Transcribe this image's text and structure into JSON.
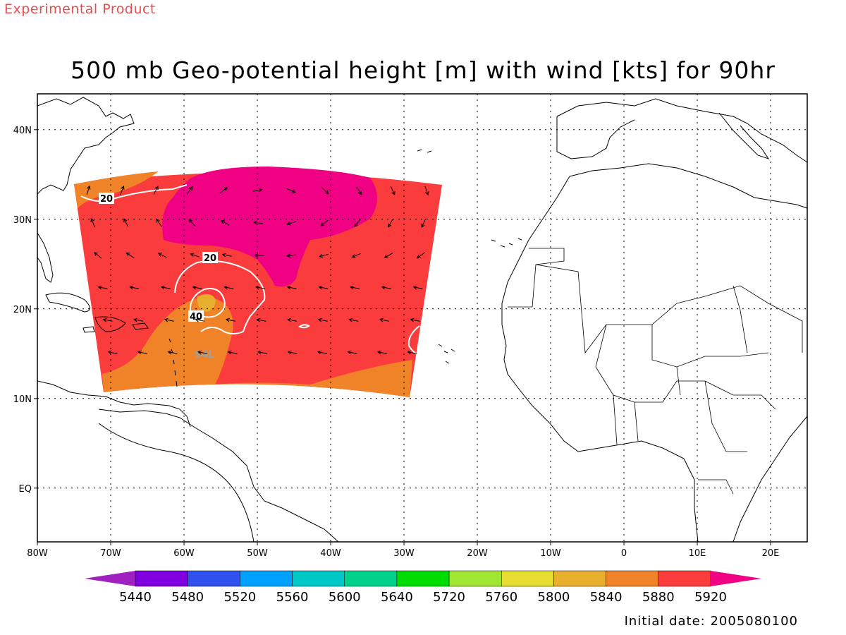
{
  "watermark": "Experimental Product",
  "title": "500 mb Geo-potential height [m] with wind [kts] for 90hr",
  "footer": "Initial date: 2005080100",
  "map": {
    "lon_range": [
      -80,
      25
    ],
    "lat_range": [
      -6,
      44
    ],
    "lon_ticks": [
      {
        "value": -80,
        "label": "80W"
      },
      {
        "value": -70,
        "label": "70W"
      },
      {
        "value": -60,
        "label": "60W"
      },
      {
        "value": -50,
        "label": "50W"
      },
      {
        "value": -40,
        "label": "40W"
      },
      {
        "value": -30,
        "label": "30W"
      },
      {
        "value": -20,
        "label": "20W"
      },
      {
        "value": -10,
        "label": "10W"
      },
      {
        "value": 0,
        "label": "0"
      },
      {
        "value": 10,
        "label": "10E"
      },
      {
        "value": 20,
        "label": "20E"
      }
    ],
    "lat_ticks": [
      {
        "value": 40,
        "label": "40N"
      },
      {
        "value": 30,
        "label": "30N"
      },
      {
        "value": 20,
        "label": "20N"
      },
      {
        "value": 10,
        "label": "10N"
      },
      {
        "value": 0,
        "label": "EQ"
      }
    ],
    "wind_contour_labels": [
      "20",
      "20",
      "40"
    ],
    "storm_label": "94L"
  },
  "colorbar": {
    "colors": [
      "#a020c0",
      "#8000e0",
      "#3050f0",
      "#00a0ff",
      "#00c8c8",
      "#00d28c",
      "#00dc00",
      "#a0e632",
      "#e6dc32",
      "#e6af2d",
      "#f08228",
      "#fa3c3c",
      "#f00082"
    ],
    "labels": [
      "5440",
      "5480",
      "5520",
      "5560",
      "5600",
      "5640",
      "5720",
      "5760",
      "5800",
      "5840",
      "5880",
      "5920"
    ]
  }
}
